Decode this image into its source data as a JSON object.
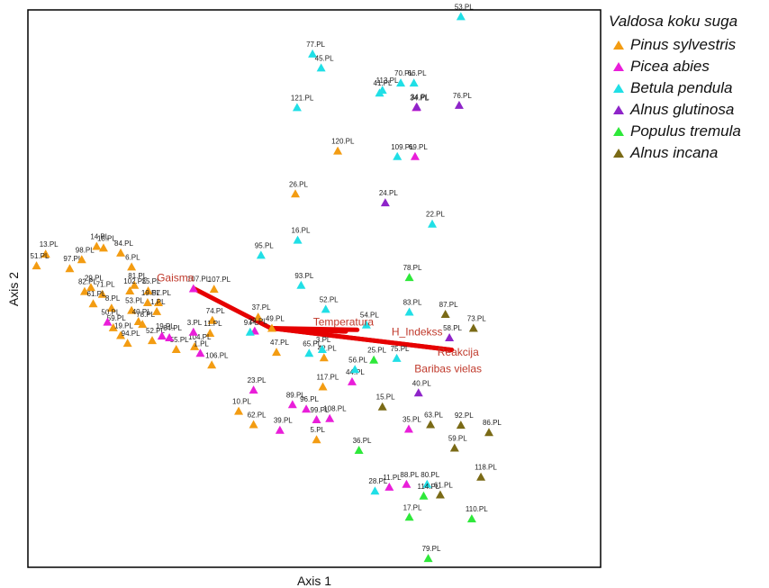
{
  "chart_data": {
    "type": "scatter",
    "xlabel": "Axis 1",
    "ylabel": "Axis 2",
    "xlim": [
      0,
      100
    ],
    "ylim": [
      0,
      100
    ],
    "legend_title": "Valdosa koku suga",
    "legend_position": "right",
    "series": [
      {
        "name": "Pinus sylvestris",
        "color": "#f39c12",
        "points": [
          {
            "label": "13.PL",
            "x": 3.1,
            "y": 56.2
          },
          {
            "label": "51.PL",
            "x": 1.5,
            "y": 54.1
          },
          {
            "label": "97.PL",
            "x": 7.3,
            "y": 53.6
          },
          {
            "label": "98.PL",
            "x": 9.4,
            "y": 55.2
          },
          {
            "label": "14.PL",
            "x": 12.0,
            "y": 57.6
          },
          {
            "label": "18.PL",
            "x": 13.2,
            "y": 57.3
          },
          {
            "label": "84.PL",
            "x": 16.2,
            "y": 56.4
          },
          {
            "label": "6.PL",
            "x": 18.1,
            "y": 53.9
          },
          {
            "label": "29.PL",
            "x": 11.0,
            "y": 50.2
          },
          {
            "label": "82.PL",
            "x": 9.9,
            "y": 49.5
          },
          {
            "label": "71.PL",
            "x": 13.0,
            "y": 49.0
          },
          {
            "label": "81.PL",
            "x": 18.6,
            "y": 50.6
          },
          {
            "label": "61.PL",
            "x": 11.4,
            "y": 47.3
          },
          {
            "label": "102.PL",
            "x": 17.8,
            "y": 49.6
          },
          {
            "label": "35.PL",
            "x": 21.0,
            "y": 49.6
          },
          {
            "label": "19.PL",
            "x": 20.9,
            "y": 47.5
          },
          {
            "label": "57.PL",
            "x": 22.8,
            "y": 47.5
          },
          {
            "label": "1.PL",
            "x": 22.5,
            "y": 45.9
          },
          {
            "label": "8.PL",
            "x": 14.6,
            "y": 46.5
          },
          {
            "label": "53.PL",
            "x": 18.1,
            "y": 46.1
          },
          {
            "label": "40.PL",
            "x": 19.3,
            "y": 44.1
          },
          {
            "label": "78.PL",
            "x": 20.0,
            "y": 43.6
          },
          {
            "label": "59.PL",
            "x": 14.9,
            "y": 43.0
          },
          {
            "label": "19b.PL",
            "x": 16.2,
            "y": 41.6
          },
          {
            "label": "94.PL",
            "x": 17.4,
            "y": 40.2
          },
          {
            "label": "52.PL",
            "x": 21.7,
            "y": 40.7
          },
          {
            "label": "55.PL",
            "x": 25.9,
            "y": 39.1
          },
          {
            "label": "107.PL",
            "x": 32.5,
            "y": 49.9
          },
          {
            "label": "74.PL",
            "x": 32.2,
            "y": 44.3
          },
          {
            "label": "11.PL",
            "x": 31.8,
            "y": 42.0
          },
          {
            "label": "104.PL",
            "x": 29.1,
            "y": 39.6
          },
          {
            "label": "106.PL",
            "x": 32.1,
            "y": 36.3
          },
          {
            "label": "37.PL",
            "x": 40.2,
            "y": 44.9
          },
          {
            "label": "49.PL",
            "x": 42.6,
            "y": 42.9
          },
          {
            "label": "47.PL",
            "x": 43.4,
            "y": 38.6
          },
          {
            "label": "42.PL",
            "x": 51.7,
            "y": 37.6
          },
          {
            "label": "117.PL",
            "x": 51.5,
            "y": 32.4
          },
          {
            "label": "10.PL",
            "x": 36.8,
            "y": 28.0
          },
          {
            "label": "62.PL",
            "x": 39.4,
            "y": 25.6
          },
          {
            "label": "5.PL",
            "x": 50.4,
            "y": 22.9
          },
          {
            "label": "26.PL",
            "x": 46.7,
            "y": 67.0
          },
          {
            "label": "120.PL",
            "x": 54.1,
            "y": 74.7
          }
        ]
      },
      {
        "name": "Picea abies",
        "color": "#e91ed9",
        "points": [
          {
            "label": "50.PL",
            "x": 13.9,
            "y": 44.0
          },
          {
            "label": "19d.PL",
            "x": 23.4,
            "y": 41.5
          },
          {
            "label": "64.PL",
            "x": 24.7,
            "y": 41.2
          },
          {
            "label": "3.PL",
            "x": 28.9,
            "y": 42.2
          },
          {
            "label": "1.PL",
            "x": 30.1,
            "y": 38.4
          },
          {
            "label": "107b.PL",
            "x": 28.9,
            "y": 50.0
          },
          {
            "label": "27.PL",
            "x": 39.6,
            "y": 42.4
          },
          {
            "label": "23.PL",
            "x": 39.4,
            "y": 31.8
          },
          {
            "label": "96.PL",
            "x": 48.6,
            "y": 28.4
          },
          {
            "label": "89.PL",
            "x": 46.2,
            "y": 29.2
          },
          {
            "label": "39.PL",
            "x": 44.0,
            "y": 24.6
          },
          {
            "label": "99.PL",
            "x": 50.4,
            "y": 26.5
          },
          {
            "label": "108.PL",
            "x": 52.7,
            "y": 26.7
          },
          {
            "label": "44.PL",
            "x": 56.6,
            "y": 33.3
          },
          {
            "label": "35.PL",
            "x": 66.5,
            "y": 24.8
          },
          {
            "label": "11.PL",
            "x": 63.1,
            "y": 14.4
          },
          {
            "label": "88.PL",
            "x": 66.1,
            "y": 14.9
          },
          {
            "label": "34.PL",
            "x": 67.8,
            "y": 82.5
          },
          {
            "label": "69.PL",
            "x": 67.6,
            "y": 73.7
          }
        ]
      },
      {
        "name": "Betula pendula",
        "color": "#20dfe6",
        "points": [
          {
            "label": "53.PL",
            "x": 75.6,
            "y": 98.8
          },
          {
            "label": "77.PL",
            "x": 49.7,
            "y": 92.1
          },
          {
            "label": "45.PL",
            "x": 51.2,
            "y": 89.6
          },
          {
            "label": "121.PL",
            "x": 47.0,
            "y": 82.5
          },
          {
            "label": "113.PL",
            "x": 61.9,
            "y": 85.6
          },
          {
            "label": "41.PL",
            "x": 61.4,
            "y": 85.1
          },
          {
            "label": "70.PL",
            "x": 65.1,
            "y": 86.9
          },
          {
            "label": "66.PL",
            "x": 67.4,
            "y": 86.9
          },
          {
            "label": "109.PL",
            "x": 64.5,
            "y": 73.7
          },
          {
            "label": "22.PL",
            "x": 70.6,
            "y": 61.6
          },
          {
            "label": "95.PL",
            "x": 40.7,
            "y": 56.0
          },
          {
            "label": "16.PL",
            "x": 47.1,
            "y": 58.7
          },
          {
            "label": "93.PL",
            "x": 47.7,
            "y": 50.6
          },
          {
            "label": "52.PL",
            "x": 52.0,
            "y": 46.3
          },
          {
            "label": "83.PL",
            "x": 66.6,
            "y": 45.8
          },
          {
            "label": "54.PL",
            "x": 59.1,
            "y": 43.5
          },
          {
            "label": "9.PL",
            "x": 38.8,
            "y": 42.2
          },
          {
            "label": "65.PL",
            "x": 49.1,
            "y": 38.4
          },
          {
            "label": "75.PL",
            "x": 64.4,
            "y": 37.5
          },
          {
            "label": "56.PL",
            "x": 57.1,
            "y": 35.5
          },
          {
            "label": "28.PL",
            "x": 60.6,
            "y": 13.7
          },
          {
            "label": "80.PL",
            "x": 69.7,
            "y": 14.9
          },
          {
            "label": "3b.PL",
            "x": 51.4,
            "y": 39.1
          }
        ]
      },
      {
        "name": "Alnus glutinosa",
        "color": "#8e24c9",
        "points": [
          {
            "label": "76.PL",
            "x": 75.3,
            "y": 82.9
          },
          {
            "label": "24.PL",
            "x": 62.4,
            "y": 65.4
          },
          {
            "label": "58.PL",
            "x": 73.6,
            "y": 41.2
          },
          {
            "label": "40.PL",
            "x": 68.2,
            "y": 31.3
          },
          {
            "label": "34b.PL",
            "x": 67.9,
            "y": 82.6
          }
        ]
      },
      {
        "name": "Populus tremula",
        "color": "#2ee83a",
        "points": [
          {
            "label": "78.PL",
            "x": 66.6,
            "y": 52.0
          },
          {
            "label": "25.PL",
            "x": 60.4,
            "y": 37.2
          },
          {
            "label": "36.PL",
            "x": 57.8,
            "y": 21.0
          },
          {
            "label": "114.PL",
            "x": 69.1,
            "y": 12.8
          },
          {
            "label": "17.PL",
            "x": 66.6,
            "y": 9.0
          },
          {
            "label": "110.PL",
            "x": 77.5,
            "y": 8.7
          },
          {
            "label": "79.PL",
            "x": 69.9,
            "y": 1.6
          }
        ]
      },
      {
        "name": "Alnus incana",
        "color": "#7a6a16",
        "points": [
          {
            "label": "87.PL",
            "x": 72.9,
            "y": 45.4
          },
          {
            "label": "73.PL",
            "x": 77.8,
            "y": 42.9
          },
          {
            "label": "15.PL",
            "x": 61.9,
            "y": 28.8
          },
          {
            "label": "63.PL",
            "x": 70.3,
            "y": 25.6
          },
          {
            "label": "92.PL",
            "x": 75.6,
            "y": 25.5
          },
          {
            "label": "86.PL",
            "x": 80.5,
            "y": 24.2
          },
          {
            "label": "59.PL",
            "x": 74.5,
            "y": 21.4
          },
          {
            "label": "118.PL",
            "x": 79.1,
            "y": 16.2
          },
          {
            "label": "61.PL",
            "x": 72.0,
            "y": 13.0
          }
        ]
      }
    ],
    "vectors": {
      "origin": {
        "x": 42.4,
        "y": 42.9
      },
      "color": "#e60000",
      "items": [
        {
          "label": "Gaisma",
          "x": 29.0,
          "y": 50.0,
          "label_x": 22.5,
          "label_y": 51.3
        },
        {
          "label": "Temperatura",
          "x": 57.5,
          "y": 42.6,
          "label_x": 49.8,
          "label_y": 43.4
        },
        {
          "label": "H_Indekss",
          "x": 55.5,
          "y": 42.3,
          "label_x": 63.5,
          "label_y": 41.6
        },
        {
          "label": "Reakcija",
          "x": 74.0,
          "y": 39.0,
          "label_x": 71.5,
          "label_y": 38.0
        },
        {
          "label": "Baribas vielas",
          "x": 74.0,
          "y": 39.0,
          "label_x": 67.5,
          "label_y": 35.0
        }
      ]
    }
  }
}
